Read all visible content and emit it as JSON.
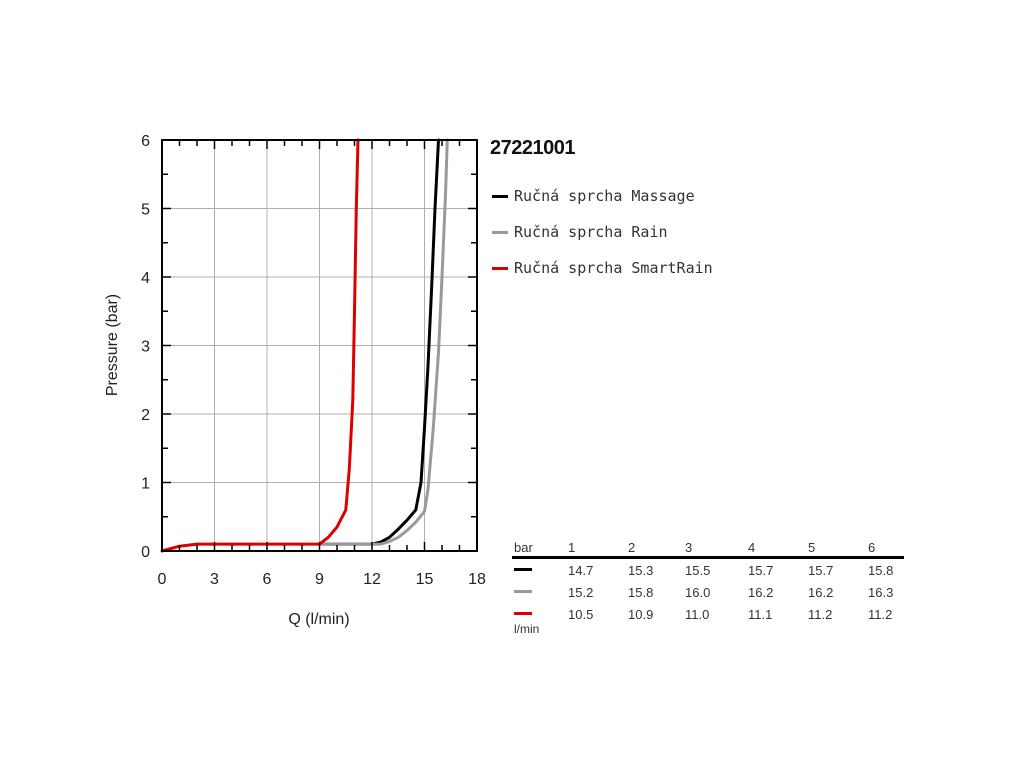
{
  "colors": {
    "massage": "#000000",
    "rain": "#999999",
    "smartrain": "#dd0000",
    "grid": "#b0b0b0"
  },
  "chart_data": {
    "type": "line",
    "title": "27221001",
    "xlabel": "Q (l/min)",
    "ylabel": "Pressure (bar)",
    "xlim": [
      0,
      18
    ],
    "ylim": [
      0,
      6
    ],
    "xticks": [
      "0",
      "3",
      "6",
      "9",
      "12",
      "15",
      "18"
    ],
    "yticks": [
      "0",
      "1",
      "2",
      "3",
      "4",
      "5",
      "6"
    ],
    "grid": true,
    "legend_position": "right-top",
    "series": [
      {
        "name": "Ručná sprcha Massage",
        "color": "#000000",
        "x": [
          9,
          12,
          12.5,
          13,
          13.5,
          14,
          14.5,
          14.8,
          15,
          15.2,
          15.4,
          15.6,
          15.8
        ],
        "y": [
          0.1,
          0.1,
          0.13,
          0.2,
          0.32,
          0.45,
          0.6,
          1.0,
          1.8,
          2.7,
          3.8,
          5.0,
          6.0
        ]
      },
      {
        "name": "Ručná sprcha Rain",
        "color": "#999999",
        "x": [
          9,
          12.5,
          13,
          13.5,
          14,
          14.5,
          15,
          15.2,
          15.5,
          15.8,
          16,
          16.2,
          16.3
        ],
        "y": [
          0.1,
          0.1,
          0.14,
          0.2,
          0.3,
          0.42,
          0.58,
          0.9,
          1.8,
          2.9,
          4.0,
          5.2,
          6.0
        ]
      },
      {
        "name": "Ručná sprcha SmartRain",
        "color": "#dd0000",
        "x": [
          0,
          1,
          2,
          9,
          9.5,
          10,
          10.5,
          10.7,
          10.9,
          11.0,
          11.1,
          11.2
        ],
        "y": [
          0,
          0.07,
          0.1,
          0.1,
          0.2,
          0.35,
          0.6,
          1.2,
          2.2,
          3.5,
          5.0,
          6.0
        ]
      }
    ]
  },
  "table": {
    "unit_top": "bar",
    "unit_bottom": "l/min",
    "columns": [
      "1",
      "2",
      "3",
      "4",
      "5",
      "6"
    ],
    "rows": [
      {
        "key": "massage",
        "values": [
          "14.7",
          "15.3",
          "15.5",
          "15.7",
          "15.7",
          "15.8"
        ]
      },
      {
        "key": "rain",
        "values": [
          "15.2",
          "15.8",
          "16.0",
          "16.2",
          "16.2",
          "16.3"
        ]
      },
      {
        "key": "smartrain",
        "values": [
          "10.5",
          "10.9",
          "11.0",
          "11.1",
          "11.2",
          "11.2"
        ]
      }
    ]
  }
}
